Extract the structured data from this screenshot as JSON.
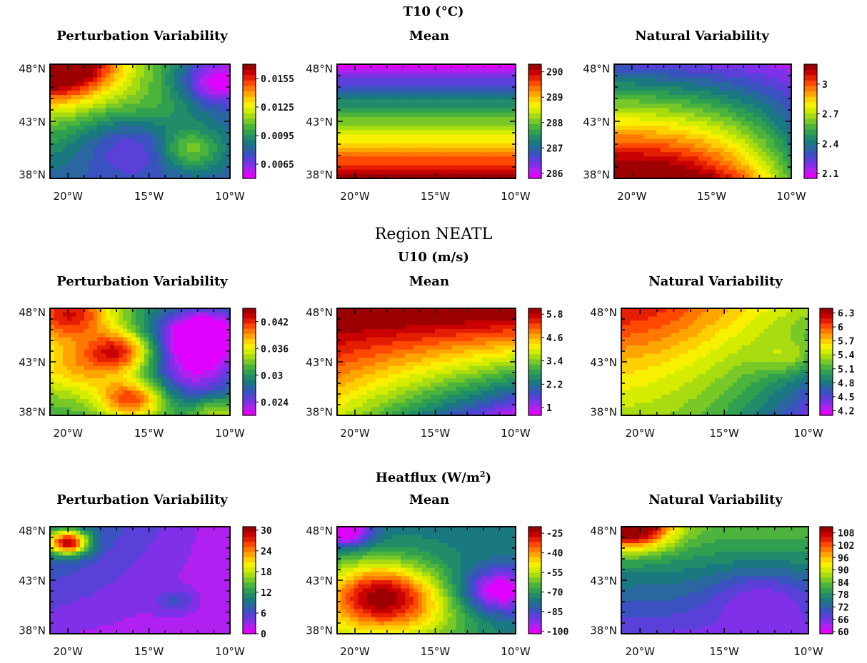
{
  "region_title": "Region NEATL",
  "sections": [
    {
      "title": "T10 (°C)"
    },
    {
      "title": "U10 (m/s)"
    },
    {
      "title_main": "Heatflux (W/m",
      "title_sup": "2",
      "title_end": ")"
    }
  ],
  "palette": [
    "#9c0000",
    "#c80000",
    "#e51e00",
    "#ff4800",
    "#ff7800",
    "#ffa500",
    "#ffd000",
    "#f7f000",
    "#d4ec00",
    "#a8dc10",
    "#78c828",
    "#4cb43c",
    "#30a050",
    "#228c6a",
    "#1a7880",
    "#2a66a0",
    "#3a52c0",
    "#5a40d8",
    "#8030e8",
    "#b020f0",
    "#e000ff"
  ],
  "chart_data": [
    {
      "type": "heatmap",
      "section": 0,
      "title": "Perturbation Variability",
      "x": [
        "20°W",
        "15°W",
        "10°W"
      ],
      "y": [
        "48°N",
        "43°N",
        "38°N"
      ],
      "colorbar": [
        "0.0155",
        "0.0125",
        "0.0095",
        "0.0065"
      ],
      "colorbar_range": [
        0.005,
        0.017
      ]
    },
    {
      "type": "heatmap",
      "section": 0,
      "title": "Mean",
      "x": [
        "20°W",
        "15°W",
        "10°W"
      ],
      "y": [
        "48°N",
        "43°N",
        "38°N"
      ],
      "colorbar": [
        "290",
        "289",
        "288",
        "287",
        "286"
      ],
      "colorbar_range": [
        285.8,
        290.3
      ]
    },
    {
      "type": "heatmap",
      "section": 0,
      "title": "Natural Variability",
      "x": [
        "20°W",
        "15°W",
        "10°W"
      ],
      "y": [
        "48°N",
        "43°N",
        "38°N"
      ],
      "colorbar": [
        "3",
        "2.7",
        "2.4",
        "2.1"
      ],
      "colorbar_range": [
        2.05,
        3.2
      ]
    },
    {
      "type": "heatmap",
      "section": 1,
      "title": "Perturbation Variability",
      "x": [
        "20°W",
        "15°W",
        "10°W"
      ],
      "y": [
        "48°N",
        "43°N",
        "38°N"
      ],
      "colorbar": [
        "0.042",
        "0.036",
        "0.03",
        "0.024"
      ],
      "colorbar_range": [
        0.021,
        0.045
      ]
    },
    {
      "type": "heatmap",
      "section": 1,
      "title": "Mean",
      "x": [
        "20°W",
        "15°W",
        "10°W"
      ],
      "y": [
        "48°N",
        "43°N",
        "38°N"
      ],
      "colorbar": [
        "5.8",
        "4.6",
        "3.4",
        "2.2",
        "1"
      ],
      "colorbar_range": [
        0.6,
        6.1
      ]
    },
    {
      "type": "heatmap",
      "section": 1,
      "title": "Natural Variability",
      "x": [
        "20°W",
        "15°W",
        "10°W"
      ],
      "y": [
        "48°N",
        "43°N",
        "38°N"
      ],
      "colorbar": [
        "6.3",
        "6",
        "5.7",
        "5.4",
        "5.1",
        "4.8",
        "4.5",
        "4.2"
      ],
      "colorbar_range": [
        4.1,
        6.4
      ]
    },
    {
      "type": "heatmap",
      "section": 2,
      "title": "Perturbation Variability",
      "x": [
        "20°W",
        "15°W",
        "10°W"
      ],
      "y": [
        "48°N",
        "43°N",
        "38°N"
      ],
      "colorbar": [
        "30",
        "24",
        "18",
        "12",
        "6",
        "0"
      ],
      "colorbar_range": [
        0,
        31
      ]
    },
    {
      "type": "heatmap",
      "section": 2,
      "title": "Mean",
      "x": [
        "20°W",
        "15°W",
        "10°W"
      ],
      "y": [
        "48°N",
        "43°N",
        "38°N"
      ],
      "colorbar": [
        "-25",
        "-40",
        "-55",
        "-70",
        "-85",
        "-100"
      ],
      "colorbar_range": [
        -102,
        -20
      ]
    },
    {
      "type": "heatmap",
      "section": 2,
      "title": "Natural Variability",
      "x": [
        "20°W",
        "15°W",
        "10°W"
      ],
      "y": [
        "48°N",
        "43°N",
        "38°N"
      ],
      "colorbar": [
        "108",
        "102",
        "96",
        "90",
        "84",
        "78",
        "72",
        "66",
        "60"
      ],
      "colorbar_range": [
        59,
        111
      ]
    }
  ]
}
